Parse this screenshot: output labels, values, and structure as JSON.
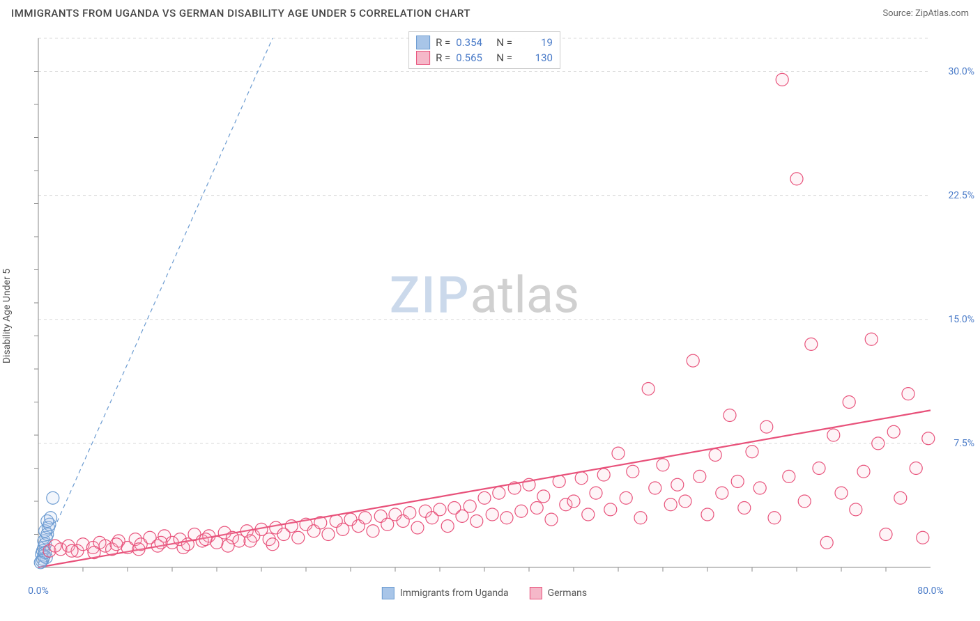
{
  "title": "IMMIGRANTS FROM UGANDA VS GERMAN DISABILITY AGE UNDER 5 CORRELATION CHART",
  "source_label": "Source:",
  "source_value": "ZipAtlas.com",
  "y_axis_label": "Disability Age Under 5",
  "watermark_zip": "ZIP",
  "watermark_atlas": "atlas",
  "chart": {
    "type": "scatter",
    "background_color": "#ffffff",
    "grid_color": "#d8d8d8",
    "axis_color": "#888888",
    "tick_label_color": "#4a7bc8",
    "tick_fontsize": 14,
    "xlim": [
      0,
      80
    ],
    "ylim": [
      0,
      32
    ],
    "x_ticks": [
      {
        "pos": 0,
        "label": "0.0%"
      },
      {
        "pos": 80,
        "label": "80.0%"
      }
    ],
    "y_ticks": [
      {
        "pos": 7.5,
        "label": "7.5%"
      },
      {
        "pos": 15.0,
        "label": "15.0%"
      },
      {
        "pos": 22.5,
        "label": "22.5%"
      },
      {
        "pos": 30.0,
        "label": "30.0%"
      }
    ],
    "x_minor_count": 20,
    "y_minor_count": 16,
    "marker_radius": 9,
    "marker_stroke_width": 1.2,
    "marker_fill_opacity": 0.15,
    "series": [
      {
        "name": "Immigrants from Uganda",
        "color_stroke": "#6b9bd1",
        "color_fill": "#a8c5e8",
        "R": "0.354",
        "N": "19",
        "trend": {
          "x1": 0,
          "y1": 0.2,
          "x2": 21,
          "y2": 32,
          "dash": "6,5",
          "width": 1.2
        },
        "points": [
          [
            0.3,
            0.8
          ],
          [
            0.4,
            1.0
          ],
          [
            0.5,
            1.2
          ],
          [
            0.6,
            1.4
          ],
          [
            0.5,
            1.6
          ],
          [
            0.7,
            1.8
          ],
          [
            0.8,
            2.0
          ],
          [
            0.6,
            2.2
          ],
          [
            0.9,
            2.4
          ],
          [
            1.0,
            2.6
          ],
          [
            0.8,
            2.8
          ],
          [
            1.1,
            3.0
          ],
          [
            0.7,
            0.6
          ],
          [
            0.4,
            0.5
          ],
          [
            0.3,
            0.4
          ],
          [
            0.5,
            0.7
          ],
          [
            0.6,
            0.9
          ],
          [
            0.2,
            0.3
          ],
          [
            1.3,
            4.2
          ]
        ]
      },
      {
        "name": "Germans",
        "color_stroke": "#e8517a",
        "color_fill": "#f5b8c9",
        "R": "0.565",
        "N": "130",
        "trend": {
          "x1": 0,
          "y1": 0.0,
          "x2": 80,
          "y2": 9.5,
          "dash": "none",
          "width": 2.2
        },
        "points": [
          [
            1,
            1.0
          ],
          [
            2,
            1.1
          ],
          [
            2.7,
            1.3
          ],
          [
            3.5,
            1.0
          ],
          [
            4,
            1.4
          ],
          [
            4.9,
            1.2
          ],
          [
            5.5,
            1.5
          ],
          [
            6,
            1.3
          ],
          [
            6.6,
            1.1
          ],
          [
            7.2,
            1.6
          ],
          [
            8,
            1.2
          ],
          [
            8.7,
            1.7
          ],
          [
            9.2,
            1.4
          ],
          [
            10,
            1.8
          ],
          [
            10.7,
            1.3
          ],
          [
            11.3,
            1.9
          ],
          [
            12,
            1.5
          ],
          [
            12.7,
            1.7
          ],
          [
            13.4,
            1.4
          ],
          [
            14,
            2.0
          ],
          [
            14.7,
            1.6
          ],
          [
            15.3,
            1.9
          ],
          [
            16,
            1.5
          ],
          [
            16.7,
            2.1
          ],
          [
            17.4,
            1.8
          ],
          [
            18,
            1.6
          ],
          [
            18.7,
            2.2
          ],
          [
            19.3,
            1.9
          ],
          [
            20,
            2.3
          ],
          [
            20.7,
            1.7
          ],
          [
            21.3,
            2.4
          ],
          [
            22,
            2.0
          ],
          [
            22.7,
            2.5
          ],
          [
            23.3,
            1.8
          ],
          [
            24,
            2.6
          ],
          [
            24.7,
            2.2
          ],
          [
            25.3,
            2.7
          ],
          [
            26,
            2.0
          ],
          [
            26.7,
            2.8
          ],
          [
            27.3,
            2.3
          ],
          [
            28,
            2.9
          ],
          [
            28.7,
            2.5
          ],
          [
            29.3,
            3.0
          ],
          [
            30,
            2.2
          ],
          [
            30.7,
            3.1
          ],
          [
            31.3,
            2.6
          ],
          [
            32,
            3.2
          ],
          [
            32.7,
            2.8
          ],
          [
            33.3,
            3.3
          ],
          [
            34,
            2.4
          ],
          [
            34.7,
            3.4
          ],
          [
            35.3,
            3.0
          ],
          [
            36,
            3.5
          ],
          [
            36.7,
            2.5
          ],
          [
            37.3,
            3.6
          ],
          [
            38,
            3.1
          ],
          [
            38.7,
            3.7
          ],
          [
            39.3,
            2.8
          ],
          [
            40,
            4.2
          ],
          [
            40.7,
            3.2
          ],
          [
            41.3,
            4.5
          ],
          [
            42,
            3.0
          ],
          [
            42.7,
            4.8
          ],
          [
            43.3,
            3.4
          ],
          [
            44,
            5.0
          ],
          [
            44.7,
            3.6
          ],
          [
            45.3,
            4.3
          ],
          [
            46,
            2.9
          ],
          [
            46.7,
            5.2
          ],
          [
            47.3,
            3.8
          ],
          [
            48,
            4.0
          ],
          [
            48.7,
            5.4
          ],
          [
            49.3,
            3.2
          ],
          [
            50,
            4.5
          ],
          [
            50.7,
            5.6
          ],
          [
            51.3,
            3.5
          ],
          [
            52,
            6.9
          ],
          [
            52.7,
            4.2
          ],
          [
            53.3,
            5.8
          ],
          [
            54,
            3.0
          ],
          [
            54.7,
            10.8
          ],
          [
            55.3,
            4.8
          ],
          [
            56,
            6.2
          ],
          [
            56.7,
            3.8
          ],
          [
            57.3,
            5.0
          ],
          [
            58,
            4.0
          ],
          [
            58.7,
            12.5
          ],
          [
            59.3,
            5.5
          ],
          [
            60,
            3.2
          ],
          [
            60.7,
            6.8
          ],
          [
            61.3,
            4.5
          ],
          [
            62,
            9.2
          ],
          [
            62.7,
            5.2
          ],
          [
            63.3,
            3.6
          ],
          [
            64,
            7.0
          ],
          [
            64.7,
            4.8
          ],
          [
            65.3,
            8.5
          ],
          [
            66,
            3.0
          ],
          [
            66.7,
            29.5
          ],
          [
            67.3,
            5.5
          ],
          [
            68,
            23.5
          ],
          [
            68.7,
            4.0
          ],
          [
            69.3,
            13.5
          ],
          [
            70,
            6.0
          ],
          [
            70.7,
            1.5
          ],
          [
            71.3,
            8.0
          ],
          [
            72,
            4.5
          ],
          [
            72.7,
            10.0
          ],
          [
            73.3,
            3.5
          ],
          [
            74,
            5.8
          ],
          [
            74.7,
            13.8
          ],
          [
            75.3,
            7.5
          ],
          [
            76,
            2.0
          ],
          [
            76.7,
            8.2
          ],
          [
            77.3,
            4.2
          ],
          [
            78,
            10.5
          ],
          [
            78.7,
            6.0
          ],
          [
            79.3,
            1.8
          ],
          [
            79.8,
            7.8
          ],
          [
            1.5,
            1.3
          ],
          [
            3,
            1.0
          ],
          [
            5,
            0.9
          ],
          [
            7,
            1.4
          ],
          [
            9,
            1.1
          ],
          [
            11,
            1.5
          ],
          [
            13,
            1.2
          ],
          [
            15,
            1.7
          ],
          [
            17,
            1.3
          ],
          [
            19,
            1.6
          ],
          [
            21,
            1.4
          ]
        ]
      }
    ]
  },
  "legend_box": {
    "R_label": "R =",
    "N_label": "N ="
  },
  "bottom_legend": [
    {
      "label": "Immigrants from Uganda",
      "stroke": "#6b9bd1",
      "fill": "#a8c5e8"
    },
    {
      "label": "Germans",
      "stroke": "#e8517a",
      "fill": "#f5b8c9"
    }
  ]
}
